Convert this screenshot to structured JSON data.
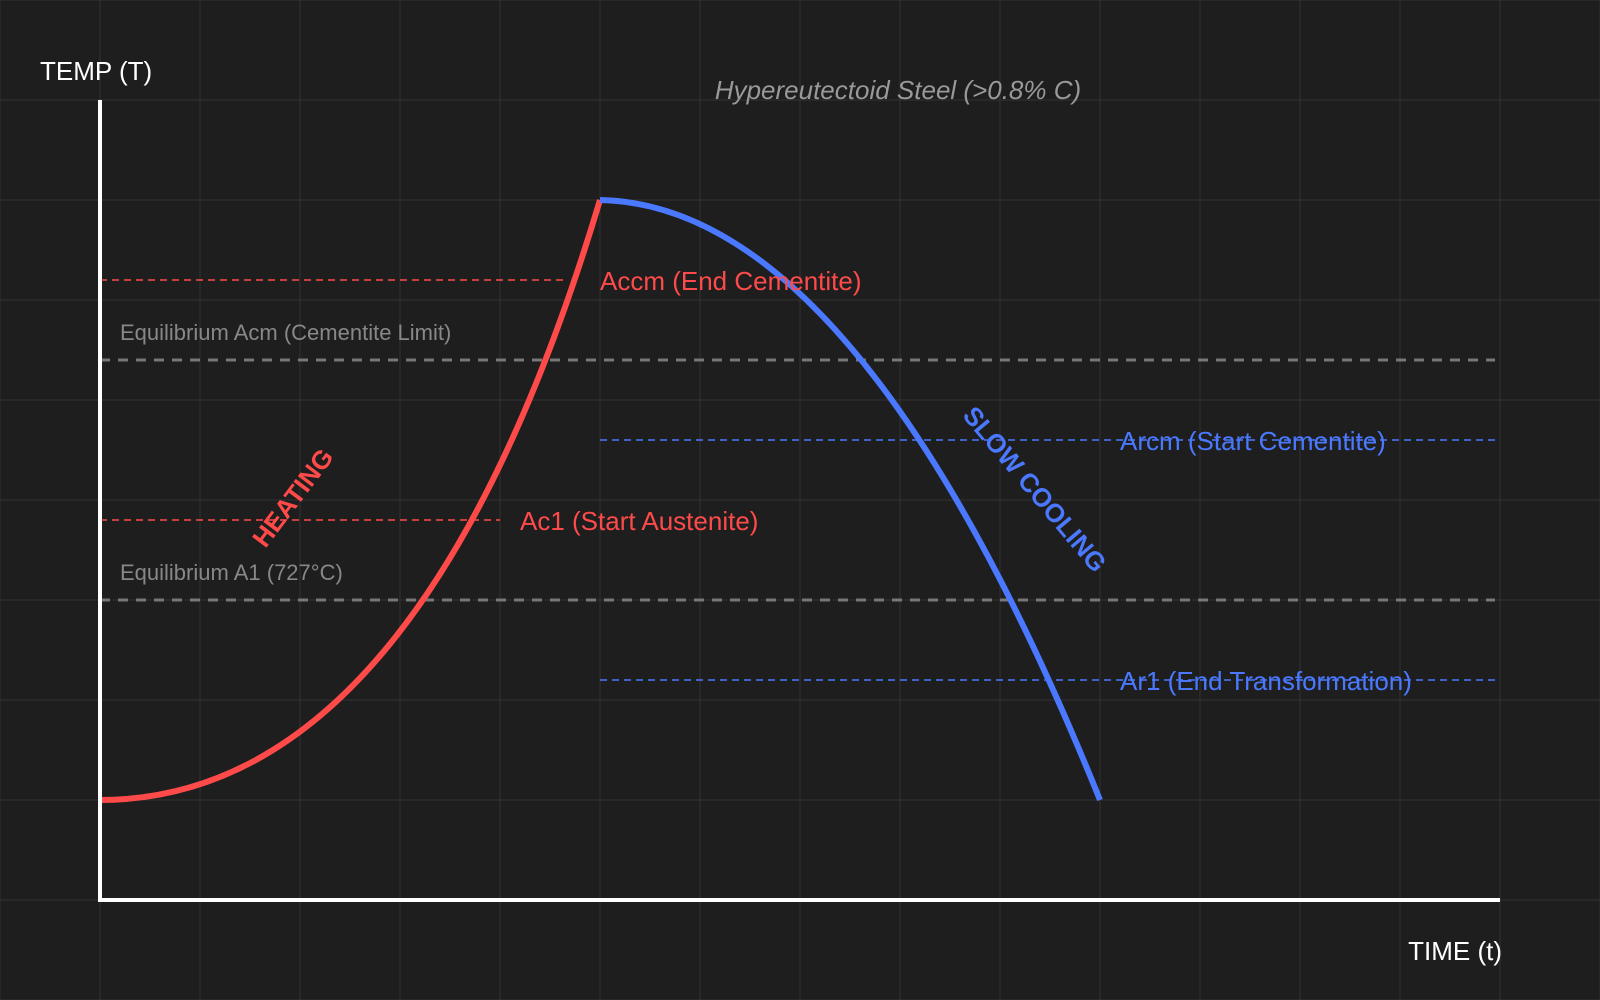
{
  "title": "Hypereutectoid Steel (>0.8% C)",
  "axes": {
    "y_label": "TEMP (T)",
    "x_label": "TIME (t)"
  },
  "lines": {
    "accm": "Accm (End Cementite)",
    "acm": "Equilibrium Acm (Cementite Limit)",
    "ac1": "Ac1 (Start Austenite)",
    "a1": "Equilibrium A1 (727°C)",
    "arcm": "Arcm (Start Cementite)",
    "ar1": "Ar1 (End Transformation)"
  },
  "curves": {
    "heating": "HEATING",
    "cooling": "SLOW COOLING"
  },
  "colors": {
    "background": "#1e1e1e",
    "grid": "#333333",
    "heating": "#ff4a4a",
    "cooling": "#4a78ff",
    "equilibrium": "#777777",
    "axis": "#ffffff",
    "title": "#999999"
  }
}
